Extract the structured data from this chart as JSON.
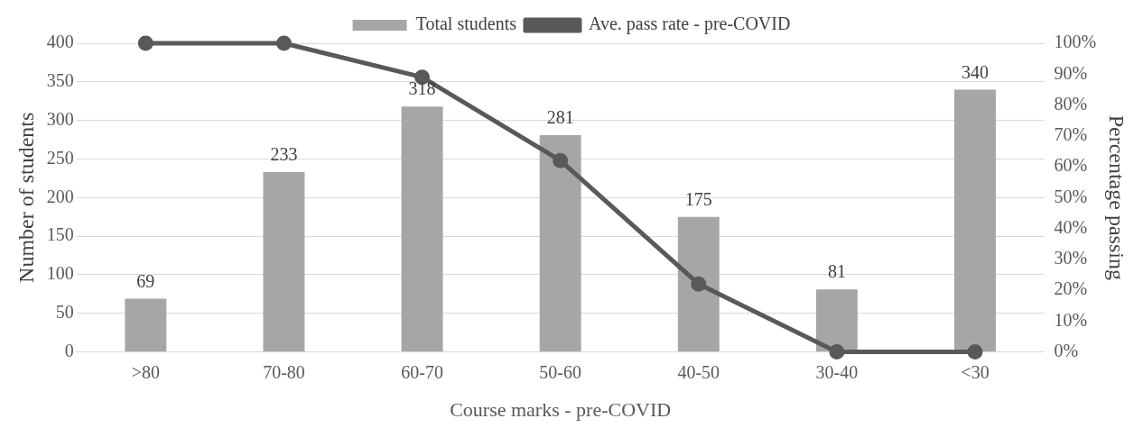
{
  "chart_data": {
    "type": "bar",
    "xlabel": "Course marks - pre-COVID",
    "ylabel": "Number of students",
    "y2label": "Percentage passing",
    "categories": [
      ">80",
      "70-80",
      "60-70",
      "50-60",
      "40-50",
      "30-40",
      "<30"
    ],
    "series": [
      {
        "name": "Total students",
        "color": "#a6a6a6",
        "values": [
          69,
          233,
          318,
          281,
          175,
          81,
          340
        ],
        "value_labels": [
          "69",
          "233",
          "318",
          "281",
          "175",
          "81",
          "340"
        ]
      },
      {
        "name": "Ave. pass rate - pre-COVID",
        "type": "line",
        "axis": "y2",
        "color": "#595959",
        "values": [
          100,
          100,
          89,
          62,
          22,
          0,
          0
        ]
      }
    ],
    "ylim": [
      0,
      400
    ],
    "yticks": [
      0,
      50,
      100,
      150,
      200,
      250,
      300,
      350,
      400
    ],
    "y2lim": [
      0,
      100
    ],
    "y2ticks": [
      {
        "value": 0,
        "label": "0%"
      },
      {
        "value": 10,
        "label": "10%"
      },
      {
        "value": 20,
        "label": "20%"
      },
      {
        "value": 30,
        "label": "30%"
      },
      {
        "value": 40,
        "label": "40%"
      },
      {
        "value": 50,
        "label": "50%"
      },
      {
        "value": 60,
        "label": "60%"
      },
      {
        "value": 70,
        "label": "70%"
      },
      {
        "value": 80,
        "label": "80%"
      },
      {
        "value": 90,
        "label": "90%"
      },
      {
        "value": 100,
        "label": "100%"
      }
    ],
    "grid": "y",
    "legend": "top",
    "marker": "circle",
    "line_style": "solid"
  }
}
